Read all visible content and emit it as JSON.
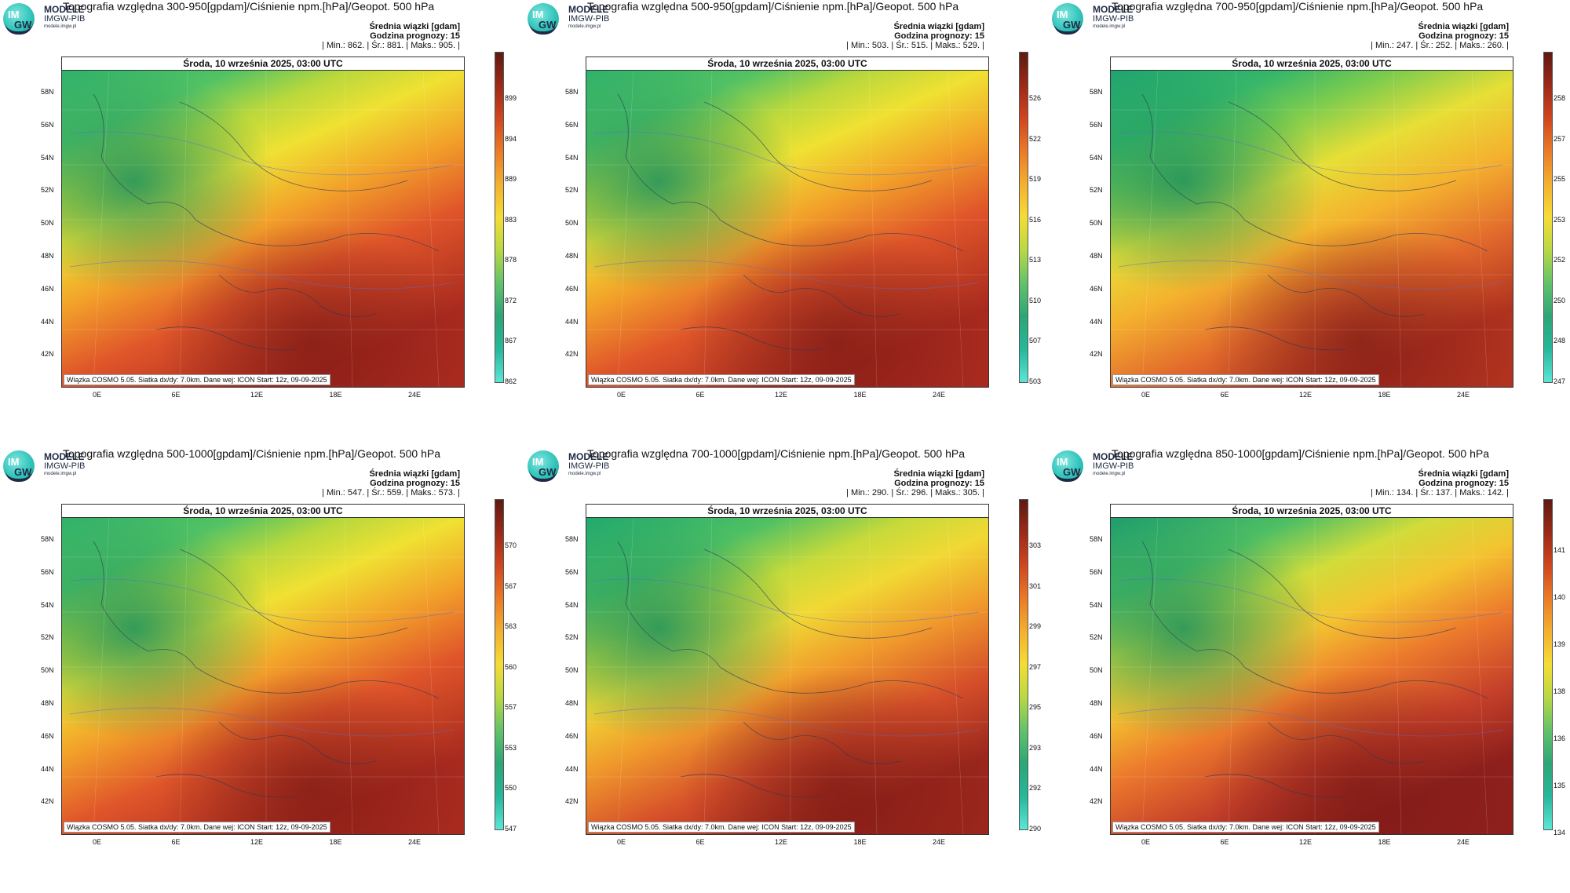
{
  "common": {
    "brand_name": "MODELE",
    "brand_org": "IMGW-PIB",
    "brand_url": "modele.imgw.pl",
    "logo_top": "IM",
    "logo_bottom": "GW",
    "stat_label": "Średnia wiązki [gdam]",
    "forecast_hour": "Godzina prognozy: 15",
    "date": "Środa, 10 września 2025, 03:00 UTC",
    "footer": "Wiązka COSMO 5.05. Siatka dx/dy: 7.0km. Dane wej: ICON Start: 12z, 09-09-2025",
    "lat_labels": [
      "58N",
      "56N",
      "54N",
      "52N",
      "50N",
      "48N",
      "46N",
      "44N",
      "42N"
    ],
    "lon_labels": [
      "0E",
      "6E",
      "12E",
      "18E",
      "24E"
    ]
  },
  "panels": [
    {
      "title": "Topografia względna 300-950[gpdam]/Ciśnienie npm.[hPa]/Geopot. 500 hPa",
      "stats": "| Min.: 862. | Śr.: 881. | Maks.: 905. |",
      "ticks": [
        "899",
        "894",
        "889",
        "883",
        "878",
        "872",
        "867",
        "862"
      ],
      "variant": 0
    },
    {
      "title": "Topografia względna 500-950[gpdam]/Ciśnienie npm.[hPa]/Geopot. 500 hPa",
      "stats": "| Min.: 503. | Śr.: 515. | Maks.: 529. |",
      "ticks": [
        "526",
        "522",
        "519",
        "516",
        "513",
        "510",
        "507",
        "503"
      ],
      "variant": 0
    },
    {
      "title": "Topografia względna 700-950[gpdam]/Ciśnienie npm.[hPa]/Geopot. 500 hPa",
      "stats": "| Min.: 247. | Śr.: 252. | Maks.: 260. |",
      "ticks": [
        "258",
        "257",
        "255",
        "253",
        "252",
        "250",
        "248",
        "247"
      ],
      "variant": 1
    },
    {
      "title": "Topografia względna 500-1000[gpdam]/Ciśnienie npm.[hPa]/Geopot. 500 hPa",
      "stats": "| Min.: 547. | Śr.: 559. | Maks.: 573. |",
      "ticks": [
        "570",
        "567",
        "563",
        "560",
        "557",
        "553",
        "550",
        "547"
      ],
      "variant": 0
    },
    {
      "title": "Topografia względna 700-1000[gpdam]/Ciśnienie npm.[hPa]/Geopot. 500 hPa",
      "stats": "| Min.: 290. | Śr.: 296. | Maks.: 305. |",
      "ticks": [
        "303",
        "301",
        "299",
        "297",
        "295",
        "293",
        "292",
        "290"
      ],
      "variant": 2
    },
    {
      "title": "Topografia względna 850-1000[gpdam]/Ciśnienie npm.[hPa]/Geopot. 500 hPa",
      "stats": "| Min.: 134. | Śr.: 137. | Maks.: 142. |",
      "ticks": [
        "141",
        "140",
        "139",
        "138",
        "136",
        "135",
        "134"
      ],
      "variant": 3
    }
  ]
}
